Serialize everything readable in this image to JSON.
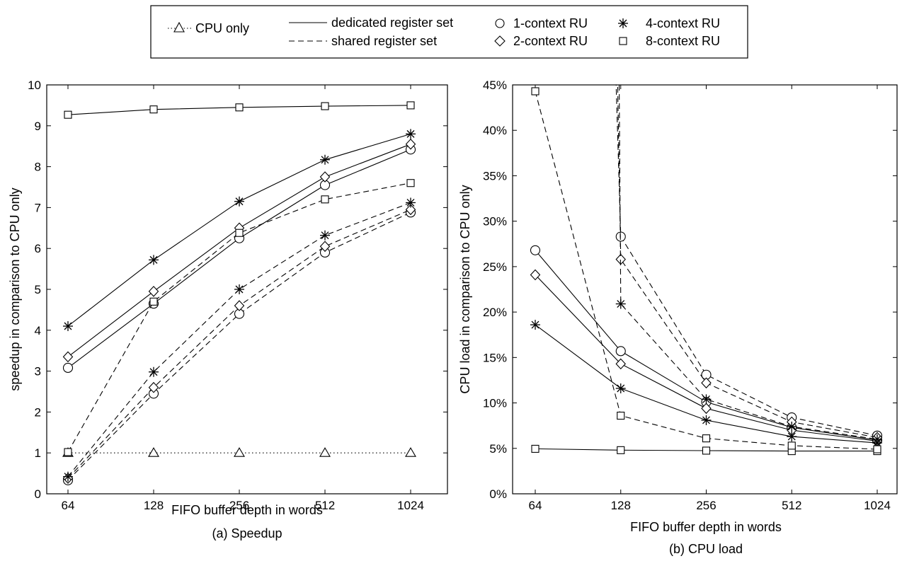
{
  "legend": {
    "entries": [
      {
        "label": "CPU only",
        "marker": "triangle",
        "line": "dotted"
      },
      {
        "label": "dedicated register set",
        "marker": "none",
        "line": "solid"
      },
      {
        "label": "shared register set",
        "marker": "none",
        "line": "dashed"
      },
      {
        "label": "1-context RU",
        "marker": "circle",
        "line": "none"
      },
      {
        "label": "2-context RU",
        "marker": "diamond",
        "line": "none"
      },
      {
        "label": "4-context RU",
        "marker": "star",
        "line": "none"
      },
      {
        "label": "8-context RU",
        "marker": "square",
        "line": "none"
      }
    ]
  },
  "chart_data": [
    {
      "type": "line",
      "caption": "(a) Speedup",
      "xlabel": "FIFO buffer depth in words",
      "ylabel": "speedup in comparison to CPU only",
      "x": [
        64,
        128,
        256,
        512,
        1024
      ],
      "x_tick_labels": [
        "64",
        "128",
        "256",
        "512",
        "1024"
      ],
      "x_scale": "log2",
      "ylim": [
        0,
        10
      ],
      "y_ticks": [
        0,
        1,
        2,
        3,
        4,
        5,
        6,
        7,
        8,
        9,
        10
      ],
      "y_tick_labels": [
        "0",
        "1",
        "2",
        "3",
        "4",
        "5",
        "6",
        "7",
        "8",
        "9",
        "10"
      ],
      "grid": false,
      "series": [
        {
          "name": "CPU only",
          "marker": "triangle",
          "line": "dotted",
          "values": [
            1.0,
            1.0,
            1.0,
            1.0,
            1.0
          ]
        },
        {
          "name": "1-context RU, dedicated register set",
          "marker": "circle",
          "line": "solid",
          "values": [
            3.08,
            4.65,
            6.25,
            7.55,
            8.42
          ]
        },
        {
          "name": "2-context RU, dedicated register set",
          "marker": "diamond",
          "line": "solid",
          "values": [
            3.35,
            4.95,
            6.5,
            7.75,
            8.55
          ]
        },
        {
          "name": "4-context RU, dedicated register set",
          "marker": "star",
          "line": "solid",
          "values": [
            4.1,
            5.72,
            7.15,
            8.17,
            8.8
          ]
        },
        {
          "name": "8-context RU, dedicated register set",
          "marker": "square",
          "line": "solid",
          "values": [
            9.27,
            9.4,
            9.45,
            9.48,
            9.5
          ]
        },
        {
          "name": "1-context RU, shared register set",
          "marker": "circle",
          "line": "dashed",
          "values": [
            0.33,
            2.45,
            4.4,
            5.9,
            6.88
          ]
        },
        {
          "name": "2-context RU, shared register set",
          "marker": "diamond",
          "line": "dashed",
          "values": [
            0.38,
            2.6,
            4.6,
            6.05,
            6.95
          ]
        },
        {
          "name": "4-context RU, shared register set",
          "marker": "star",
          "line": "dashed",
          "values": [
            0.42,
            2.98,
            5.0,
            6.32,
            7.12
          ]
        },
        {
          "name": "8-context RU, shared register set",
          "marker": "square",
          "line": "dashed",
          "values": [
            1.02,
            4.7,
            6.38,
            7.2,
            7.6
          ]
        }
      ]
    },
    {
      "type": "line",
      "caption": "(b) CPU load",
      "xlabel": "FIFO buffer depth in words",
      "ylabel": "CPU load in comparison to CPU only",
      "x": [
        64,
        128,
        256,
        512,
        1024
      ],
      "x_tick_labels": [
        "64",
        "128",
        "256",
        "512",
        "1024"
      ],
      "x_scale": "log2",
      "ylim": [
        0,
        45
      ],
      "y_ticks": [
        0,
        5,
        10,
        15,
        20,
        25,
        30,
        35,
        40,
        45
      ],
      "y_tick_labels": [
        "0%",
        "5%",
        "10%",
        "15%",
        "20%",
        "25%",
        "30%",
        "35%",
        "40%",
        "45%"
      ],
      "grid": false,
      "note": "shared 1/2/4-context curves at 64 words exceed 45% (off chart)",
      "series": [
        {
          "name": "1-context RU, dedicated register set",
          "marker": "circle",
          "line": "solid",
          "values": [
            26.8,
            15.7,
            10.1,
            7.3,
            5.9
          ]
        },
        {
          "name": "2-context RU, dedicated register set",
          "marker": "diamond",
          "line": "solid",
          "values": [
            24.1,
            14.3,
            9.4,
            7.0,
            5.8
          ]
        },
        {
          "name": "4-context RU, dedicated register set",
          "marker": "star",
          "line": "solid",
          "values": [
            18.6,
            11.6,
            8.1,
            6.3,
            5.6
          ]
        },
        {
          "name": "8-context RU, dedicated register set",
          "marker": "square",
          "line": "solid",
          "values": [
            4.95,
            4.8,
            4.75,
            4.7,
            4.7
          ]
        },
        {
          "name": "1-context RU, shared register set",
          "marker": "circle",
          "line": "dashed",
          "values": [
            null,
            28.3,
            13.1,
            8.4,
            6.4
          ]
        },
        {
          "name": "2-context RU, shared register set",
          "marker": "diamond",
          "line": "dashed",
          "values": [
            null,
            25.8,
            12.2,
            7.9,
            6.2
          ]
        },
        {
          "name": "4-context RU, shared register set",
          "marker": "star",
          "line": "dashed",
          "values": [
            null,
            20.9,
            10.4,
            7.4,
            6.0
          ]
        },
        {
          "name": "8-context RU, shared register set",
          "marker": "square",
          "line": "dashed",
          "values": [
            44.3,
            8.6,
            6.1,
            5.3,
            4.9
          ]
        }
      ]
    }
  ]
}
